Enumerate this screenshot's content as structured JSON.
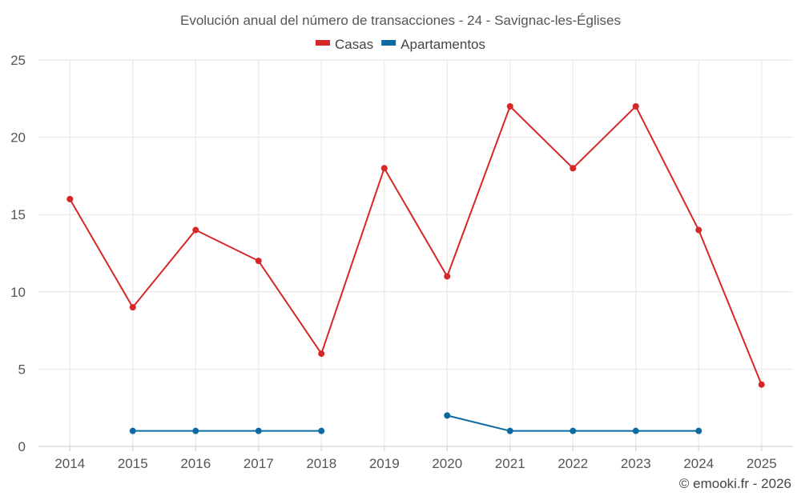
{
  "chart_data": {
    "type": "line",
    "title": "Evolución anual del número de transacciones - 24 - Savignac-les-Églises",
    "xlabel": "",
    "ylabel": "",
    "x": [
      "2014",
      "2015",
      "2016",
      "2017",
      "2018",
      "2019",
      "2020",
      "2021",
      "2022",
      "2023",
      "2024",
      "2025"
    ],
    "ylim": [
      0,
      25
    ],
    "y_ticks": [
      "0",
      "5",
      "10",
      "15",
      "20",
      "25"
    ],
    "grid": true,
    "legend_position": "top-center",
    "series": [
      {
        "name": "Casas",
        "color": "#d62728",
        "values": [
          16,
          9,
          14,
          12,
          6,
          18,
          11,
          22,
          18,
          22,
          14,
          4
        ]
      },
      {
        "name": "Apartamentos",
        "color": "#0a6aa1",
        "values": [
          null,
          1,
          1,
          1,
          1,
          null,
          2,
          1,
          1,
          1,
          1,
          null
        ]
      }
    ]
  },
  "credit": "© emooki.fr - 2026"
}
